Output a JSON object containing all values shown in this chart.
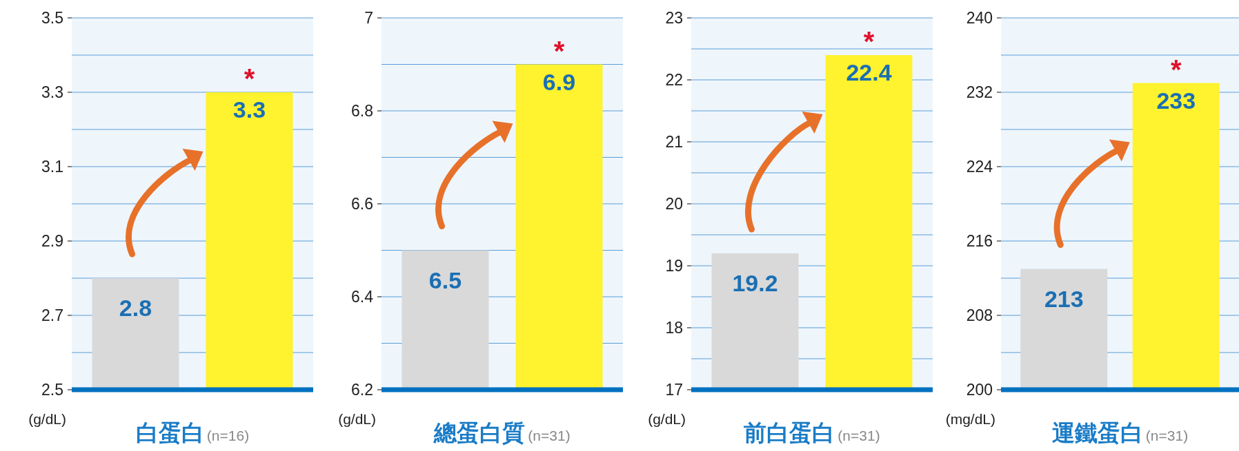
{
  "chart_data": [
    {
      "type": "bar",
      "categories": [
        null,
        null
      ],
      "values": [
        2.8,
        3.3
      ],
      "colors": [
        "#d9d9d9",
        "#fff22e"
      ],
      "ylim": [
        2.5,
        3.5
      ],
      "yticks": [
        2.5,
        {
          "value": 2.6,
          "label": null
        },
        2.7,
        {
          "value": 2.8,
          "label": null
        },
        2.9,
        {
          "value": 3.0,
          "label": null
        },
        3.1,
        {
          "value": 3.2,
          "label": null
        },
        3.3,
        {
          "value": 3.4,
          "label": null
        },
        3.5
      ],
      "grid": "y",
      "data_labels": true,
      "xlabel": "白蛋白",
      "ylabel": "(g/dL)",
      "annotations": [
        "(n=16)",
        "*"
      ]
    },
    {
      "type": "bar",
      "categories": [
        null,
        null
      ],
      "values": [
        6.5,
        6.9
      ],
      "colors": [
        "#d9d9d9",
        "#fff22e"
      ],
      "ylim": [
        6.2,
        7
      ],
      "yticks": [
        6.2,
        {
          "value": 6.3,
          "label": null
        },
        6.4,
        {
          "value": 6.5,
          "label": null
        },
        6.6,
        {
          "value": 6.7,
          "label": null
        },
        6.8,
        {
          "value": 6.9,
          "label": null
        },
        7
      ],
      "grid": "y",
      "data_labels": true,
      "xlabel": "總蛋白質",
      "ylabel": "(g/dL)",
      "annotations": [
        "(n=31)",
        "*"
      ]
    },
    {
      "type": "bar",
      "categories": [
        null,
        null
      ],
      "values": [
        19.2,
        22.4
      ],
      "colors": [
        "#d9d9d9",
        "#fff22e"
      ],
      "ylim": [
        17,
        23
      ],
      "yticks": [
        17,
        {
          "value": 17.5,
          "label": null
        },
        18,
        {
          "value": 18.5,
          "label": null
        },
        19,
        {
          "value": 19.5,
          "label": null
        },
        20,
        {
          "value": 20.5,
          "label": null
        },
        21,
        {
          "value": 21.5,
          "label": null
        },
        22,
        {
          "value": 22.5,
          "label": null
        },
        23
      ],
      "grid": "y",
      "data_labels": true,
      "xlabel": "前白蛋白",
      "ylabel": "(g/dL)",
      "annotations": [
        "(n=31)",
        "*"
      ]
    },
    {
      "type": "bar",
      "categories": [
        null,
        null
      ],
      "values": [
        213,
        233
      ],
      "colors": [
        "#d9d9d9",
        "#fff22e"
      ],
      "ylim": [
        200,
        240
      ],
      "yticks": [
        200,
        {
          "value": 204,
          "label": null
        },
        208,
        {
          "value": 212,
          "label": null
        },
        216,
        {
          "value": 220,
          "label": null
        },
        224,
        {
          "value": 228,
          "label": null
        },
        232,
        {
          "value": 236,
          "label": null
        },
        240
      ],
      "grid": "y",
      "data_labels": true,
      "xlabel": "運鐵蛋白",
      "ylabel": "(mg/dL)",
      "annotations": [
        "(n=31)",
        "*"
      ]
    }
  ]
}
